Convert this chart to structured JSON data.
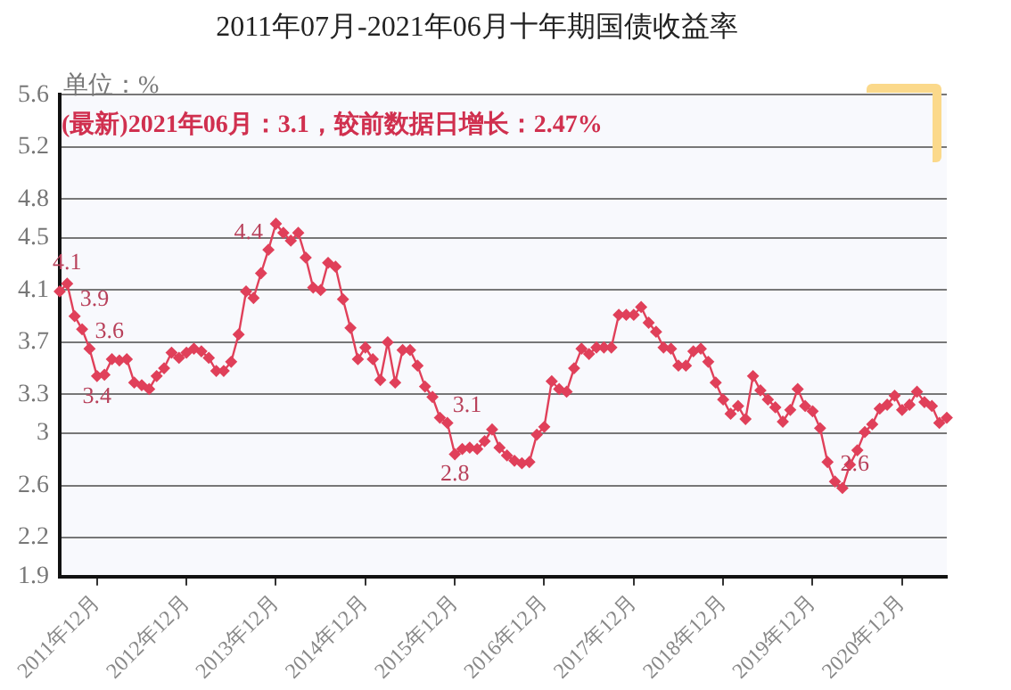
{
  "chart_data": {
    "type": "line",
    "title": "2011年07月-2021年06月十年期国债收益率",
    "annotations": [
      "单位：%",
      "(最新)2021年06月：3.1，较前数据日增长：2.47%"
    ],
    "categories": [
      null,
      null,
      null,
      null,
      null,
      "2011年12月",
      null,
      null,
      null,
      null,
      null,
      null,
      null,
      null,
      null,
      null,
      null,
      "2012年12月",
      null,
      null,
      null,
      null,
      null,
      null,
      null,
      null,
      null,
      null,
      null,
      "2013年12月",
      null,
      null,
      null,
      null,
      null,
      null,
      null,
      null,
      null,
      null,
      null,
      "2014年12月",
      null,
      null,
      null,
      null,
      null,
      null,
      null,
      null,
      null,
      null,
      null,
      "2015年12月",
      null,
      null,
      null,
      null,
      null,
      null,
      null,
      null,
      null,
      null,
      null,
      "2016年12月",
      null,
      null,
      null,
      null,
      null,
      null,
      null,
      null,
      null,
      null,
      null,
      "2017年12月",
      null,
      null,
      null,
      null,
      null,
      null,
      null,
      null,
      null,
      null,
      null,
      "2018年12月",
      null,
      null,
      null,
      null,
      null,
      null,
      null,
      null,
      null,
      null,
      null,
      "2019年12月",
      null,
      null,
      null,
      null,
      null,
      null,
      null,
      null,
      null,
      null,
      null,
      "2020年12月",
      null,
      null,
      null,
      null,
      null,
      null
    ],
    "series": [
      {
        "color": "#e0405a",
        "values": [
          4.09,
          4.15,
          3.9,
          3.8,
          3.65,
          3.44,
          3.45,
          3.57,
          3.56,
          3.57,
          3.39,
          3.37,
          3.34,
          3.44,
          3.5,
          3.62,
          3.58,
          3.62,
          3.65,
          3.63,
          3.58,
          3.48,
          3.48,
          3.55,
          3.76,
          4.09,
          4.04,
          4.23,
          4.41,
          4.61,
          4.54,
          4.48,
          4.54,
          4.35,
          4.12,
          4.1,
          4.31,
          4.28,
          4.03,
          3.81,
          3.57,
          3.66,
          3.57,
          3.41,
          3.7,
          3.39,
          3.64,
          3.64,
          3.52,
          3.36,
          3.28,
          3.12,
          3.08,
          2.84,
          2.88,
          2.89,
          2.88,
          2.94,
          3.03,
          2.89,
          2.83,
          2.79,
          2.77,
          2.78,
          2.99,
          3.05,
          3.4,
          3.34,
          3.32,
          3.5,
          3.65,
          3.61,
          3.66,
          3.66,
          3.66,
          3.91,
          3.91,
          3.91,
          3.97,
          3.85,
          3.78,
          3.66,
          3.65,
          3.52,
          3.52,
          3.63,
          3.65,
          3.55,
          3.39,
          3.26,
          3.15,
          3.21,
          3.11,
          3.44,
          3.33,
          3.26,
          3.2,
          3.09,
          3.18,
          3.34,
          3.21,
          3.17,
          3.04,
          2.78,
          2.63,
          2.58,
          2.76,
          2.87,
          3.01,
          3.07,
          3.19,
          3.22,
          3.29,
          3.18,
          3.22,
          3.32,
          3.24,
          3.21,
          3.08,
          3.12
        ],
        "value_labels": [
          null,
          "4.1",
          "3.9",
          null,
          "3.6",
          "3.4",
          null,
          null,
          null,
          null,
          null,
          null,
          null,
          null,
          null,
          null,
          null,
          null,
          null,
          null,
          null,
          null,
          null,
          null,
          null,
          null,
          null,
          null,
          "4.4",
          null,
          null,
          null,
          null,
          null,
          null,
          null,
          null,
          null,
          null,
          null,
          null,
          null,
          null,
          null,
          null,
          null,
          null,
          null,
          null,
          null,
          null,
          null,
          "3.1",
          "2.8",
          null,
          null,
          null,
          null,
          null,
          null,
          null,
          null,
          null,
          null,
          null,
          null,
          null,
          null,
          null,
          null,
          null,
          null,
          null,
          null,
          null,
          null,
          null,
          null,
          null,
          null,
          null,
          null,
          null,
          null,
          null,
          null,
          null,
          null,
          null,
          null,
          null,
          null,
          null,
          null,
          null,
          null,
          null,
          null,
          null,
          null,
          null,
          null,
          null,
          null,
          "2.6",
          null,
          null,
          null,
          null,
          null,
          null,
          null,
          null,
          null,
          null,
          null,
          null,
          null,
          null,
          null
        ]
      }
    ],
    "ylim": [
      1.9,
      5.6
    ],
    "yticks": [
      1.9,
      2.2,
      2.6,
      3,
      3.3,
      3.7,
      4.1,
      4.5,
      4.8,
      5.2,
      5.6
    ],
    "grid": "y",
    "legend": false,
    "marker": "diamond",
    "line_style": "solid"
  }
}
